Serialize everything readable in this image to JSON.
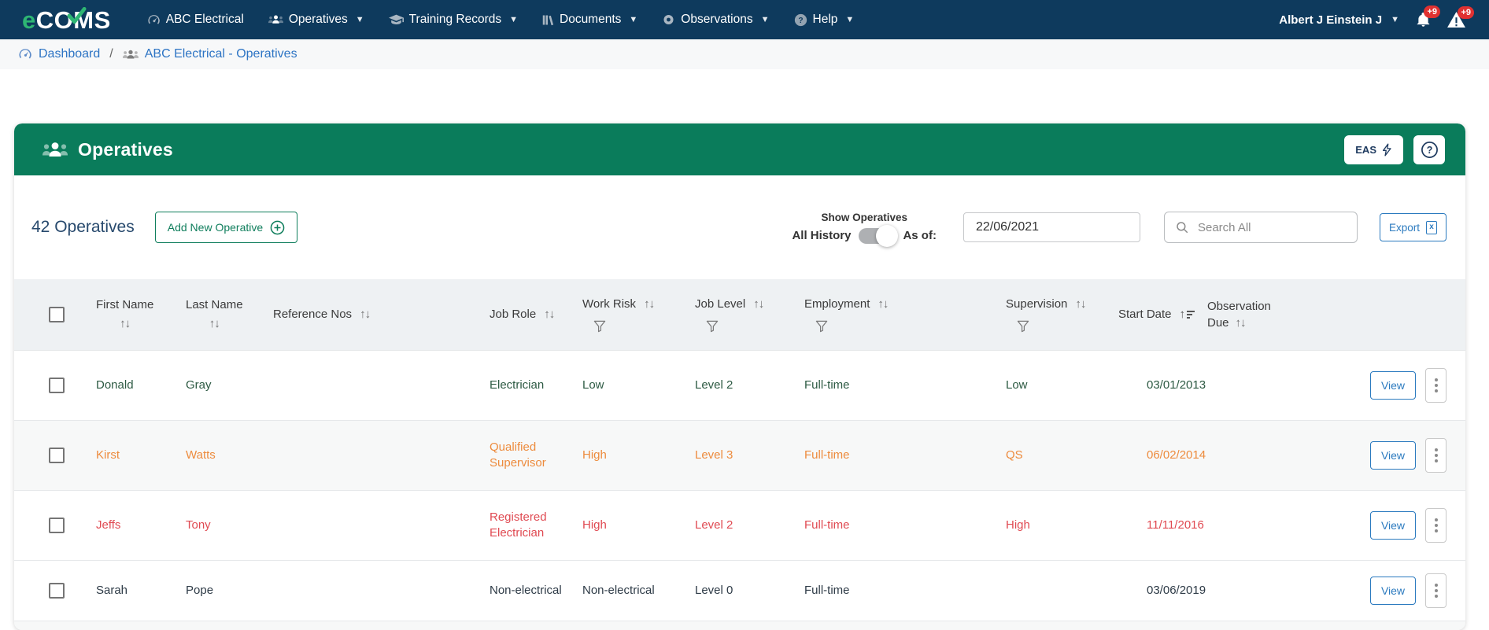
{
  "navbar": {
    "logo": {
      "prefix": "e",
      "rest": "COMS"
    },
    "items": [
      {
        "label": "ABC Electrical"
      },
      {
        "label": "Operatives"
      },
      {
        "label": "Training Records"
      },
      {
        "label": "Documents"
      },
      {
        "label": "Observations"
      },
      {
        "label": "Help"
      }
    ],
    "user_name": "Albert J Einstein J",
    "bell_badge": "+9",
    "alert_badge": "+9"
  },
  "breadcrumb": {
    "dashboard": "Dashboard",
    "separator": "/",
    "current": "ABC Electrical - Operatives"
  },
  "panel": {
    "title": "Operatives",
    "eas_button": "EAS"
  },
  "toolbar": {
    "count": "42 Operatives",
    "add_button": "Add New Operative",
    "show_operatives": "Show Operatives",
    "all_history": "All History",
    "as_of": "As of:",
    "date_value": "22/06/2021",
    "search_placeholder": "Search All",
    "export_button": "Export"
  },
  "table": {
    "headers": {
      "first_name": "First Name",
      "last_name": "Last Name",
      "reference_nos": "Reference Nos",
      "job_role": "Job Role",
      "work_risk": "Work Risk",
      "job_level": "Job Level",
      "employment": "Employment",
      "supervision": "Supervision",
      "start_date": "Start Date",
      "observation_due": "Observation Due"
    },
    "view_label": "View",
    "rows": [
      {
        "first_name": "Donald",
        "last_name": "Gray",
        "reference_nos": "",
        "job_role": "Electrician",
        "work_risk": "Low",
        "job_level": "Level 2",
        "employment": "Full-time",
        "supervision": "Low",
        "start_date": "03/01/2013",
        "observation_due": "",
        "color": "row_green",
        "striped": false
      },
      {
        "first_name": "Kirst",
        "last_name": "Watts",
        "reference_nos": "",
        "job_role": "Qualified Supervisor",
        "work_risk": "High",
        "job_level": "Level 3",
        "employment": "Full-time",
        "supervision": "QS",
        "start_date": "06/02/2014",
        "observation_due": "",
        "color": "row_orange",
        "striped": true
      },
      {
        "first_name": "Jeffs",
        "last_name": "Tony",
        "reference_nos": "",
        "job_role": "Registered Electrician",
        "work_risk": "High",
        "job_level": "Level 2",
        "employment": "Full-time",
        "supervision": "High",
        "start_date": "11/11/2016",
        "observation_due": "",
        "color": "row_red",
        "striped": false
      },
      {
        "first_name": "Sarah",
        "last_name": "Pope",
        "reference_nos": "",
        "job_role": "Non-electrical",
        "work_risk": "Non-electrical",
        "job_level": "Level 0",
        "employment": "Full-time",
        "supervision": "",
        "start_date": "03/06/2019",
        "observation_due": "",
        "color": "row_dark",
        "striped": false
      }
    ]
  },
  "colors": {
    "navbar_bg": "#0e3a5d",
    "brand_green": "#2eb673",
    "panel_green": "#0a7c5b",
    "link_blue": "#2d74c4",
    "action_blue": "#2b7abf",
    "badge_red": "#e03131",
    "row_green": "#2d5a43",
    "row_orange": "#ed8b3d",
    "row_red": "#e04a52",
    "row_dark": "#2e3b47"
  }
}
